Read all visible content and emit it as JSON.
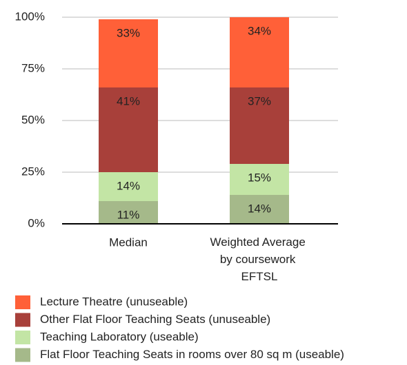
{
  "chart_data": {
    "type": "bar",
    "stacked": true,
    "categories": [
      "Median",
      "Weighted Average by coursework EFTSL"
    ],
    "series": [
      {
        "name": "Flat Floor Teaching Seats in rooms over 80 sq m (useable)",
        "color": "#a5b98a",
        "values": [
          11,
          14
        ],
        "value_labels": [
          "11%",
          "14%"
        ]
      },
      {
        "name": "Teaching Laboratory (useable)",
        "color": "#c3e5a5",
        "values": [
          14,
          15
        ],
        "value_labels": [
          "14%",
          "15%"
        ]
      },
      {
        "name": "Other Flat Floor Teaching Seats (unuseable)",
        "color": "#a8403a",
        "values": [
          41,
          37
        ],
        "value_labels": [
          "41%",
          "37%"
        ]
      },
      {
        "name": "Lecture Theatre (unuseable)",
        "color": "#ff6038",
        "values": [
          33,
          34
        ],
        "value_labels": [
          "33%",
          "34%"
        ]
      }
    ],
    "ylim": [
      0,
      100
    ],
    "yticks": [
      {
        "value": 0,
        "label": "0%"
      },
      {
        "value": 25,
        "label": "25%"
      },
      {
        "value": 50,
        "label": "50%"
      },
      {
        "value": 75,
        "label": "75%"
      },
      {
        "value": 100,
        "label": "100%"
      }
    ],
    "grid": true
  }
}
